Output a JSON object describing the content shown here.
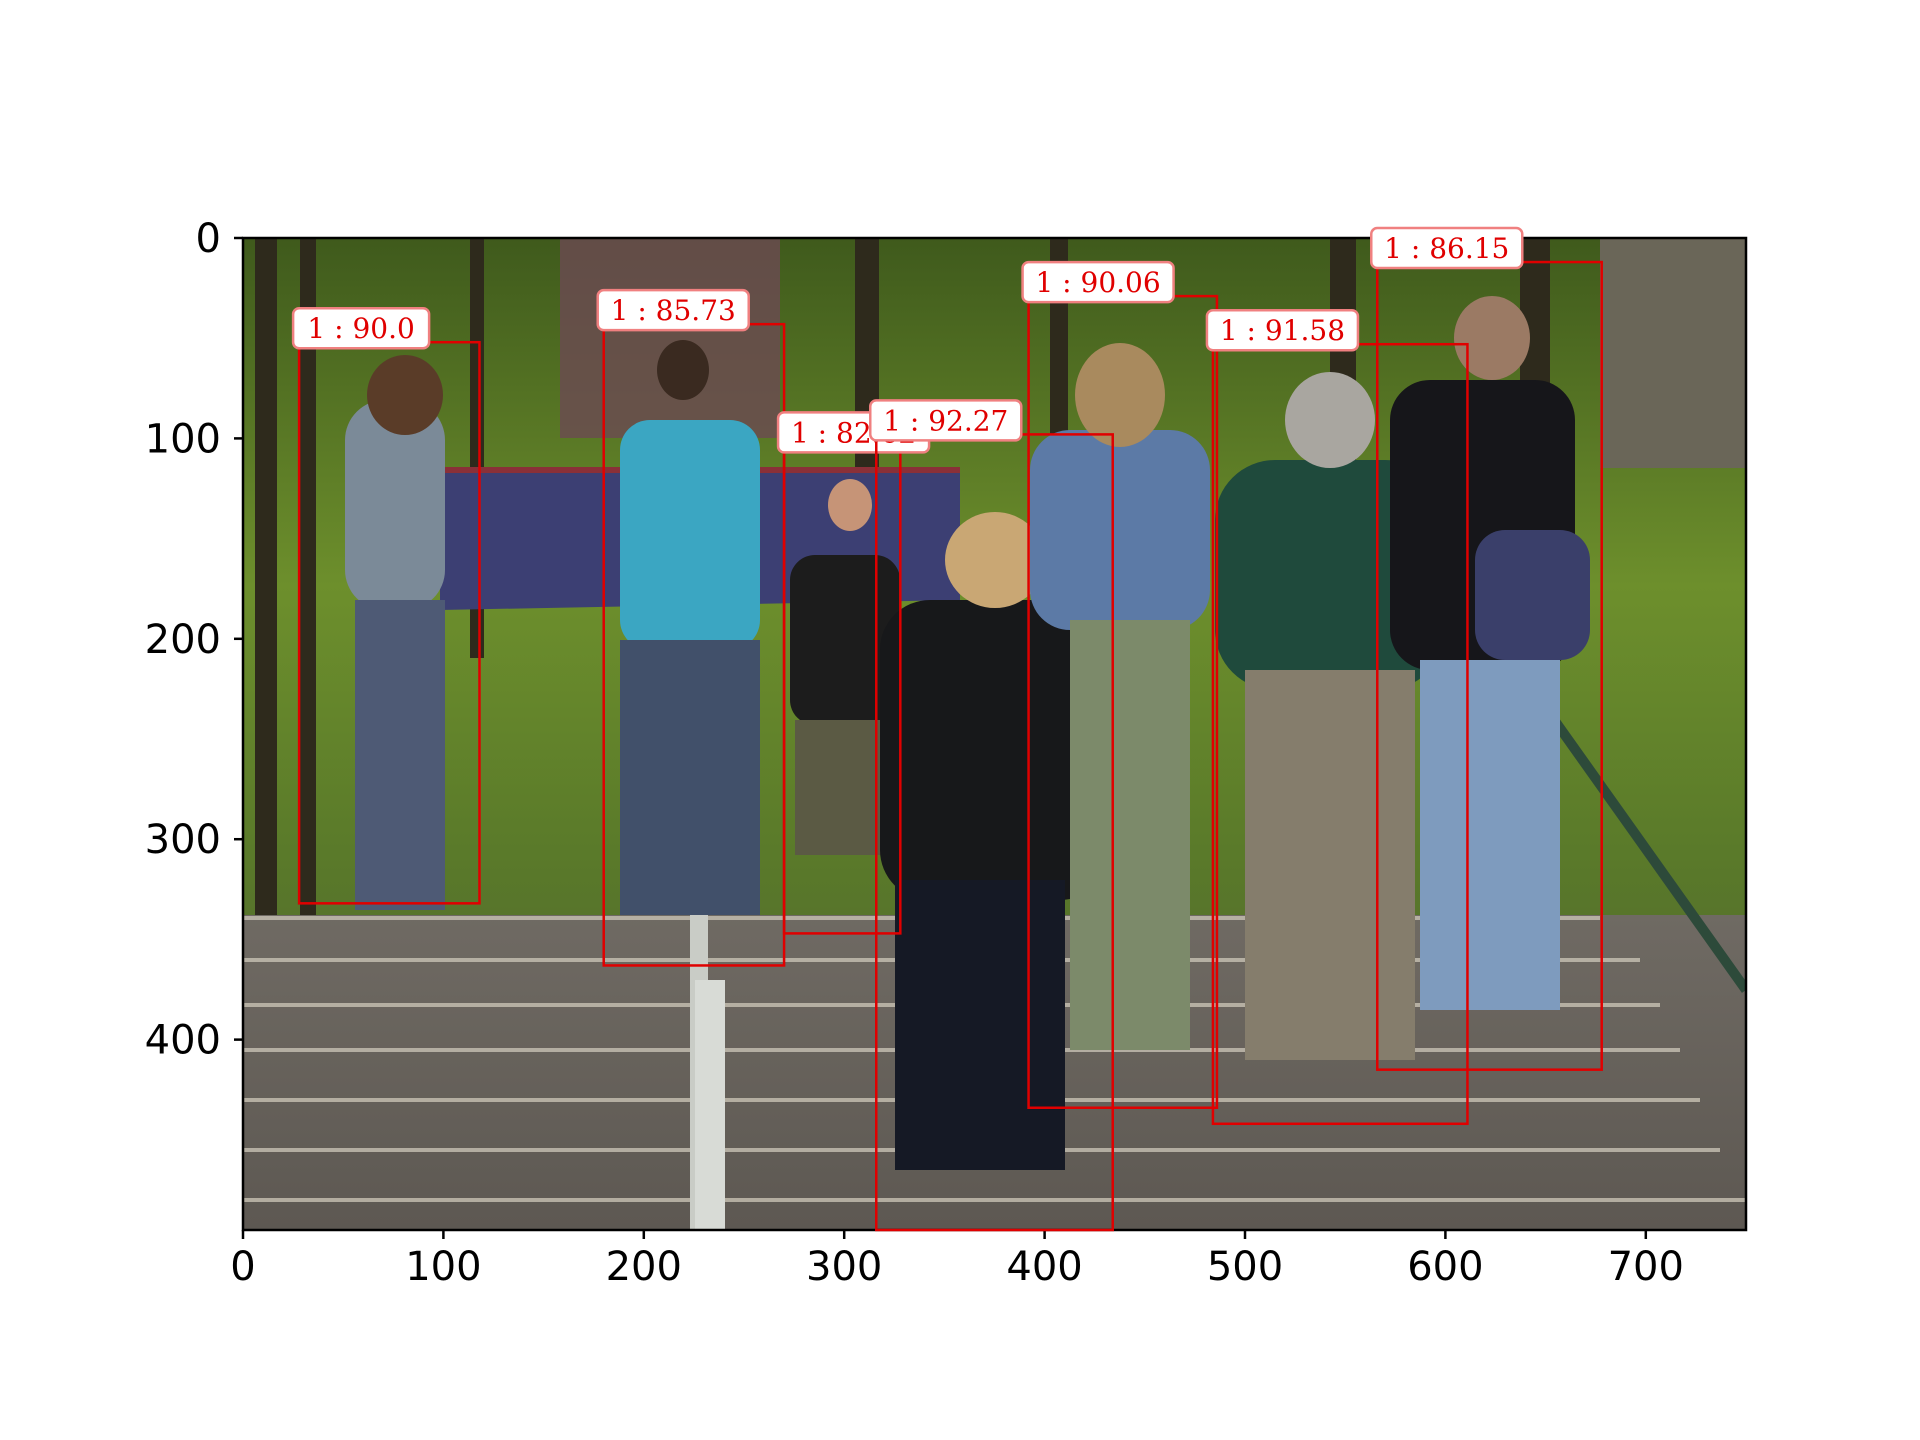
{
  "chart_data": {
    "type": "image-with-detections",
    "image_extent": {
      "xmax": 750,
      "ymax": 495
    },
    "x_ticks": [
      0,
      100,
      200,
      300,
      400,
      500,
      600,
      700
    ],
    "y_ticks": [
      0,
      100,
      200,
      300,
      400
    ],
    "box_color": "#e00000",
    "detections": [
      {
        "label": "1 : 90.0",
        "x1": 28,
        "y1": 52,
        "x2": 118,
        "y2": 332
      },
      {
        "label": "1 : 85.73",
        "x1": 180,
        "y1": 43,
        "x2": 270,
        "y2": 363
      },
      {
        "label": "1 : 82.62",
        "x1": 270,
        "y1": 104,
        "x2": 328,
        "y2": 347
      },
      {
        "label": "1 : 92.27",
        "x1": 316,
        "y1": 98,
        "x2": 434,
        "y2": 495
      },
      {
        "label": "1 : 90.06",
        "x1": 392,
        "y1": 29,
        "x2": 486,
        "y2": 434
      },
      {
        "label": "1 : 91.58",
        "x1": 484,
        "y1": 53,
        "x2": 611,
        "y2": 442
      },
      {
        "label": "1 : 86.15",
        "x1": 566,
        "y1": 12,
        "x2": 678,
        "y2": 415
      }
    ]
  }
}
